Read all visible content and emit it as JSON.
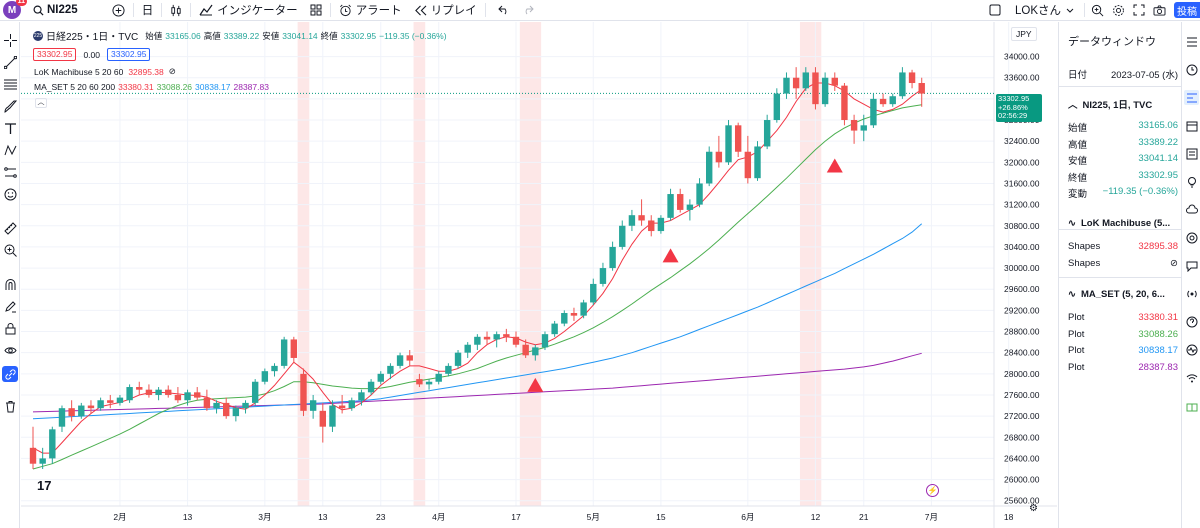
{
  "topbar": {
    "logo_text": "M",
    "logo_badge": "11",
    "symbol": "NI225",
    "interval": "日",
    "indicators_label": "インジケーター",
    "alert_label": "アラート",
    "replay_label": "リプレイ",
    "account_label": "LOKさん",
    "publish_label": "投稿"
  },
  "legend": {
    "title": "日経225・1日・TVC",
    "o_label": "始値",
    "o": "33165.06",
    "h_label": "高値",
    "h": "33389.22",
    "l_label": "安値",
    "l": "33041.14",
    "c_label": "終値",
    "c": "33302.95",
    "change": "−119.35 (−0.36%)",
    "sell": "33302.95",
    "spread": "0.00",
    "buy": "33302.95",
    "ind1_name": "LoK Machibuse 5 20 60",
    "ind1_value": "32895.38",
    "ind2_name": "MA_SET 5 20 60 200",
    "ind2_v1": "33380.31",
    "ind2_v2": "33088.26",
    "ind2_v3": "30838.17",
    "ind2_v4": "28387.83"
  },
  "axis": {
    "currency": "JPY",
    "price_ticks": [
      "34000.00",
      "33600.00",
      "33200.00",
      "32800.00",
      "32400.00",
      "32000.00",
      "31600.00",
      "31200.00",
      "30800.00",
      "30400.00",
      "30000.00",
      "29600.00",
      "29200.00",
      "28800.00",
      "28400.00",
      "28000.00",
      "27600.00",
      "27200.00",
      "26800.00",
      "26400.00",
      "26000.00",
      "25600.00"
    ],
    "time_ticks": [
      "2月",
      "13",
      "3月",
      "13",
      "23",
      "4月",
      "17",
      "5月",
      "15",
      "6月",
      "12",
      "21",
      "7月",
      "18"
    ],
    "last_price": "33302.95",
    "last_change": "+26.86%",
    "countdown": "02:56:29"
  },
  "data_window": {
    "title": "データウィンドウ",
    "date_label": "日付",
    "date_value": "2023-07-05 (水)",
    "symbol_header": "NI225, 1日, TVC",
    "rows": [
      {
        "label": "始値",
        "value": "33165.06"
      },
      {
        "label": "高値",
        "value": "33389.22"
      },
      {
        "label": "安値",
        "value": "33041.14"
      },
      {
        "label": "終値",
        "value": "33302.95"
      },
      {
        "label": "変動",
        "value": "−119.35 (−0.36%)"
      }
    ],
    "ind1_header": "LoK Machibuse (5...",
    "ind1_rows": [
      {
        "label": "Shapes",
        "value": "32895.38"
      },
      {
        "label": "Shapes",
        "value": "⊘"
      }
    ],
    "ind2_header": "MA_SET (5, 20, 6...",
    "ind2_rows": [
      {
        "label": "Plot",
        "value": "33380.31"
      },
      {
        "label": "Plot",
        "value": "33088.26"
      },
      {
        "label": "Plot",
        "value": "30838.17"
      },
      {
        "label": "Plot",
        "value": "28387.83"
      }
    ]
  },
  "colors": {
    "up": "#26a69a",
    "down": "#ef5350",
    "ma5": "#f23645",
    "ma20": "#4caf50",
    "ma60": "#2196f3",
    "ma200": "#9c27b0",
    "highlight": "#fde7e7",
    "signal": "#f23645"
  },
  "chart_data": {
    "type": "candlestick",
    "y_range": [
      25500,
      34200
    ],
    "candles": [
      [
        26600,
        27000,
        26200,
        26300
      ],
      [
        26300,
        26600,
        26200,
        26400
      ],
      [
        26400,
        27000,
        26300,
        26950
      ],
      [
        27000,
        27400,
        26900,
        27350
      ],
      [
        27350,
        27500,
        27100,
        27200
      ],
      [
        27200,
        27450,
        27150,
        27400
      ],
      [
        27400,
        27500,
        27250,
        27350
      ],
      [
        27350,
        27550,
        27300,
        27500
      ],
      [
        27500,
        27600,
        27350,
        27450
      ],
      [
        27450,
        27600,
        27400,
        27550
      ],
      [
        27500,
        27800,
        27450,
        27750
      ],
      [
        27750,
        27850,
        27600,
        27700
      ],
      [
        27700,
        27800,
        27550,
        27600
      ],
      [
        27600,
        27750,
        27500,
        27700
      ],
      [
        27700,
        27780,
        27550,
        27600
      ],
      [
        27600,
        27750,
        27450,
        27500
      ],
      [
        27500,
        27700,
        27400,
        27650
      ],
      [
        27650,
        27750,
        27500,
        27550
      ],
      [
        27550,
        27700,
        27300,
        27350
      ],
      [
        27350,
        27500,
        27250,
        27450
      ],
      [
        27450,
        27550,
        27150,
        27200
      ],
      [
        27200,
        27400,
        27100,
        27350
      ],
      [
        27350,
        27500,
        27250,
        27450
      ],
      [
        27450,
        27900,
        27400,
        27850
      ],
      [
        27850,
        28100,
        27800,
        28050
      ],
      [
        28050,
        28200,
        27950,
        28150
      ],
      [
        28150,
        28700,
        28100,
        28650
      ],
      [
        28650,
        28700,
        28200,
        28300
      ],
      [
        28000,
        28100,
        27200,
        27300
      ],
      [
        27300,
        27600,
        27150,
        27500
      ],
      [
        27300,
        27450,
        26700,
        27000
      ],
      [
        27000,
        27500,
        26900,
        27400
      ],
      [
        27400,
        27600,
        27250,
        27350
      ],
      [
        27350,
        27550,
        27300,
        27500
      ],
      [
        27500,
        27700,
        27400,
        27650
      ],
      [
        27650,
        27900,
        27600,
        27850
      ],
      [
        27850,
        28050,
        27800,
        28000
      ],
      [
        28000,
        28200,
        27900,
        28150
      ],
      [
        28150,
        28400,
        28100,
        28350
      ],
      [
        28350,
        28450,
        28150,
        28250
      ],
      [
        27900,
        28000,
        27750,
        27800
      ],
      [
        27800,
        27900,
        27700,
        27850
      ],
      [
        27850,
        28050,
        27800,
        28000
      ],
      [
        28000,
        28200,
        27950,
        28150
      ],
      [
        28150,
        28450,
        28100,
        28400
      ],
      [
        28400,
        28600,
        28300,
        28550
      ],
      [
        28550,
        28750,
        28450,
        28700
      ],
      [
        28700,
        28800,
        28550,
        28650
      ],
      [
        28650,
        28800,
        28500,
        28750
      ],
      [
        28750,
        28850,
        28600,
        28700
      ],
      [
        28700,
        28800,
        28500,
        28550
      ],
      [
        28550,
        28650,
        28300,
        28350
      ],
      [
        28350,
        28550,
        28250,
        28500
      ],
      [
        28500,
        28800,
        28450,
        28750
      ],
      [
        28750,
        29000,
        28700,
        28950
      ],
      [
        28950,
        29200,
        28900,
        29150
      ],
      [
        29150,
        29250,
        29000,
        29100
      ],
      [
        29100,
        29400,
        29050,
        29350
      ],
      [
        29350,
        29800,
        29300,
        29700
      ],
      [
        29700,
        30100,
        29650,
        30000
      ],
      [
        30000,
        30500,
        29950,
        30400
      ],
      [
        30400,
        30900,
        30350,
        30800
      ],
      [
        30800,
        31100,
        30700,
        31000
      ],
      [
        31000,
        31300,
        30800,
        30900
      ],
      [
        30900,
        31000,
        30600,
        30700
      ],
      [
        30700,
        31000,
        30650,
        30950
      ],
      [
        30950,
        31500,
        30900,
        31400
      ],
      [
        31400,
        31500,
        31050,
        31100
      ],
      [
        31100,
        31300,
        30900,
        31200
      ],
      [
        31200,
        31700,
        31150,
        31600
      ],
      [
        31600,
        32300,
        31550,
        32200
      ],
      [
        32200,
        32500,
        31900,
        32000
      ],
      [
        32000,
        32800,
        31950,
        32700
      ],
      [
        32700,
        32750,
        32100,
        32200
      ],
      [
        32200,
        32500,
        31600,
        31700
      ],
      [
        31700,
        32400,
        31650,
        32300
      ],
      [
        32300,
        32900,
        32250,
        32800
      ],
      [
        32800,
        33400,
        32750,
        33300
      ],
      [
        33300,
        33700,
        33200,
        33600
      ],
      [
        33600,
        33800,
        33200,
        33400
      ],
      [
        33400,
        33800,
        33350,
        33700
      ],
      [
        33700,
        33800,
        33000,
        33100
      ],
      [
        33100,
        33700,
        33050,
        33600
      ],
      [
        33600,
        33700,
        33350,
        33450
      ],
      [
        33450,
        33500,
        32700,
        32800
      ],
      [
        32800,
        32900,
        32350,
        32600
      ],
      [
        32600,
        32900,
        32400,
        32700
      ],
      [
        32700,
        33300,
        32650,
        33200
      ],
      [
        33200,
        33300,
        33050,
        33100
      ],
      [
        33100,
        33300,
        33050,
        33250
      ],
      [
        33250,
        33800,
        33200,
        33700
      ],
      [
        33700,
        33750,
        33400,
        33500
      ],
      [
        33500,
        33600,
        33050,
        33300
      ]
    ],
    "ma5": [
      26600,
      26500,
      26500,
      26700,
      26900,
      27100,
      27250,
      27380,
      27420,
      27460,
      27520,
      27600,
      27640,
      27650,
      27640,
      27620,
      27600,
      27590,
      27560,
      27480,
      27420,
      27360,
      27330,
      27450,
      27600,
      27780,
      28000,
      28220,
      28080,
      27900,
      27650,
      27420,
      27320,
      27350,
      27450,
      27600,
      27780,
      27920,
      28050,
      28150,
      28150,
      28100,
      28050,
      28050,
      28100,
      28200,
      28400,
      28550,
      28650,
      28700,
      28680,
      28600,
      28550,
      28580,
      28670,
      28800,
      28950,
      29100,
      29300,
      29520,
      29800,
      30150,
      30450,
      30700,
      30850,
      30850,
      30900,
      31000,
      31100,
      31200,
      31400,
      31620,
      31850,
      32050,
      32100,
      32200,
      32400,
      32600,
      32850,
      33150,
      33400,
      33500,
      33500,
      33450,
      33350,
      33200,
      33100,
      33000,
      32950,
      33000,
      33100,
      33250,
      33380
    ],
    "ma20": [
      26200,
      26250,
      26300,
      26380,
      26460,
      26540,
      26620,
      26700,
      26780,
      26860,
      26950,
      27050,
      27150,
      27250,
      27330,
      27400,
      27460,
      27500,
      27520,
      27530,
      27540,
      27550,
      27560,
      27580,
      27620,
      27680,
      27760,
      27850,
      27850,
      27830,
      27800,
      27770,
      27750,
      27730,
      27720,
      27720,
      27730,
      27760,
      27800,
      27840,
      27870,
      27900,
      27930,
      27960,
      28000,
      28050,
      28100,
      28170,
      28240,
      28300,
      28350,
      28400,
      28450,
      28500,
      28560,
      28630,
      28700,
      28780,
      28870,
      28970,
      29080,
      29200,
      29320,
      29450,
      29580,
      29700,
      29820,
      29950,
      30080,
      30220,
      30370,
      30530,
      30700,
      30870,
      31030,
      31190,
      31360,
      31530,
      31700,
      31880,
      32060,
      32240,
      32400,
      32540,
      32650,
      32740,
      32820,
      32880,
      32930,
      32980,
      33030,
      33060,
      33088
    ],
    "ma60": [
      27150,
      27160,
      27170,
      27180,
      27190,
      27200,
      27210,
      27220,
      27230,
      27240,
      27250,
      27260,
      27270,
      27280,
      27290,
      27300,
      27310,
      27320,
      27330,
      27340,
      27350,
      27360,
      27370,
      27380,
      27390,
      27400,
      27410,
      27420,
      27430,
      27440,
      27450,
      27460,
      27470,
      27480,
      27490,
      27510,
      27530,
      27560,
      27590,
      27620,
      27650,
      27680,
      27710,
      27740,
      27770,
      27800,
      27830,
      27860,
      27890,
      27920,
      27950,
      27980,
      28010,
      28040,
      28070,
      28100,
      28140,
      28180,
      28220,
      28260,
      28300,
      28350,
      28400,
      28460,
      28520,
      28580,
      28640,
      28700,
      28770,
      28840,
      28910,
      28980,
      29050,
      29120,
      29190,
      29260,
      29340,
      29420,
      29500,
      29580,
      29660,
      29740,
      29820,
      29900,
      29990,
      30080,
      30170,
      30260,
      30360,
      30460,
      30560,
      30680,
      30838
    ],
    "ma200": [
      27280,
      27285,
      27290,
      27295,
      27300,
      27305,
      27310,
      27315,
      27320,
      27325,
      27330,
      27335,
      27340,
      27345,
      27350,
      27355,
      27360,
      27365,
      27370,
      27375,
      27380,
      27385,
      27390,
      27395,
      27400,
      27405,
      27410,
      27415,
      27420,
      27425,
      27430,
      27440,
      27450,
      27460,
      27470,
      27480,
      27490,
      27500,
      27510,
      27520,
      27530,
      27540,
      27550,
      27560,
      27570,
      27580,
      27590,
      27600,
      27610,
      27620,
      27630,
      27640,
      27650,
      27660,
      27670,
      27680,
      27690,
      27700,
      27710,
      27720,
      27730,
      27745,
      27760,
      27775,
      27790,
      27805,
      27820,
      27835,
      27850,
      27865,
      27880,
      27895,
      27910,
      27925,
      27940,
      27955,
      27970,
      27985,
      28000,
      28015,
      28030,
      28045,
      28060,
      28075,
      28090,
      28110,
      28130,
      28160,
      28200,
      28240,
      28290,
      28340,
      28388
    ],
    "highlights": [
      [
        28,
        28
      ],
      [
        40,
        40
      ],
      [
        51,
        52
      ],
      [
        80,
        81
      ]
    ],
    "signals": [
      [
        52,
        28150
      ],
      [
        66,
        30600
      ],
      [
        83,
        32300
      ]
    ]
  }
}
